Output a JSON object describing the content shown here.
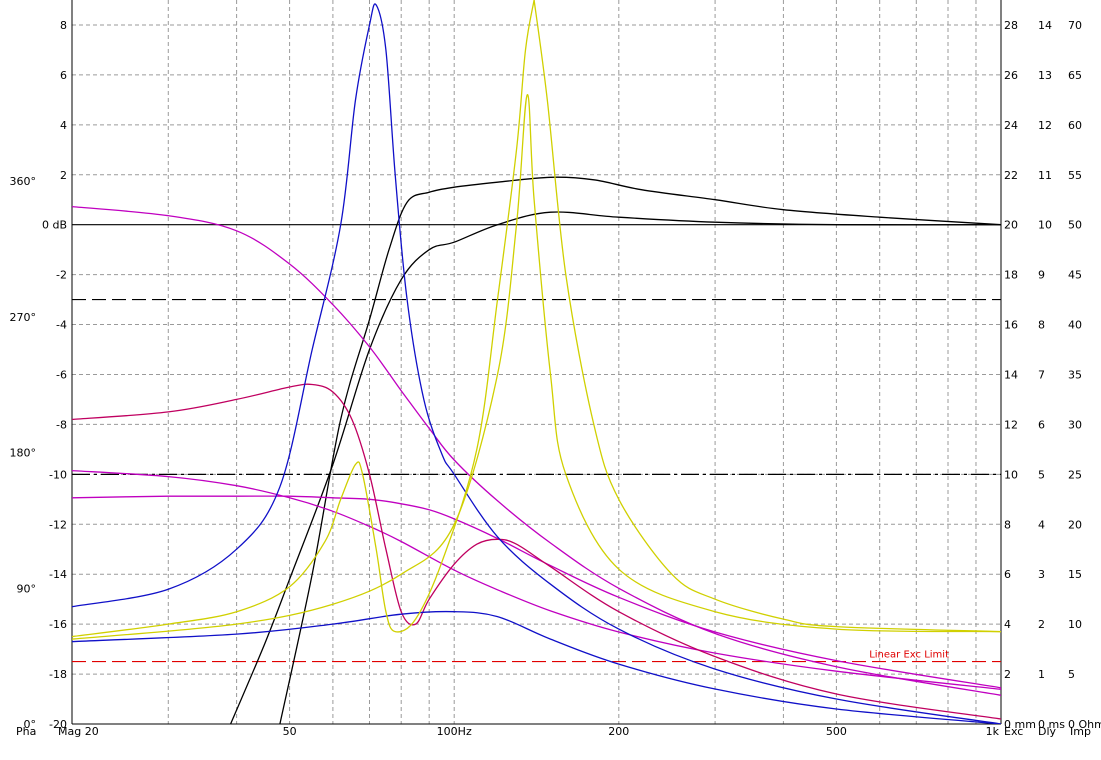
{
  "chart_data": {
    "type": "line",
    "x_scale": "log",
    "xlim": [
      20,
      1000
    ],
    "x_ticks": [
      {
        "value": 20,
        "label": "Mag 20"
      },
      {
        "value": 50,
        "label": "50"
      },
      {
        "value": 100,
        "label": "100Hz"
      },
      {
        "value": 200,
        "label": "200"
      },
      {
        "value": 500,
        "label": "500"
      },
      {
        "value": 1000,
        "label": "1k"
      }
    ],
    "x_gridlines": [
      20,
      30,
      40,
      50,
      60,
      70,
      80,
      90,
      100,
      200,
      300,
      400,
      500,
      600,
      700,
      800,
      900,
      1000
    ],
    "magnitude_axis": {
      "unit": "dB",
      "ylim": [
        -20,
        9
      ],
      "ticks": [
        {
          "value": 8,
          "label": "8"
        },
        {
          "value": 6,
          "label": "6"
        },
        {
          "value": 4,
          "label": "4"
        },
        {
          "value": 2,
          "label": "2"
        },
        {
          "value": 0,
          "label": "0 dB"
        },
        {
          "value": -2,
          "label": "-2"
        },
        {
          "value": -4,
          "label": "-4"
        },
        {
          "value": -6,
          "label": "-6"
        },
        {
          "value": -8,
          "label": "-8"
        },
        {
          "value": -10,
          "label": "-10"
        },
        {
          "value": -12,
          "label": "-12"
        },
        {
          "value": -14,
          "label": "-14"
        },
        {
          "value": -16,
          "label": "-16"
        },
        {
          "value": -18,
          "label": "-18"
        },
        {
          "value": -20,
          "label": "-20"
        }
      ]
    },
    "phase_axis": {
      "ticks": [
        {
          "value": 360,
          "label": "360°"
        },
        {
          "value": 270,
          "label": "270°"
        },
        {
          "value": 180,
          "label": "180°"
        },
        {
          "value": 90,
          "label": "90°"
        },
        {
          "value": 0,
          "label": "0°"
        }
      ],
      "ylim": [
        0,
        480
      ],
      "color": "#c000c0"
    },
    "excursion_axis": {
      "ticks": [
        "28",
        "26",
        "24",
        "22",
        "20",
        "18",
        "16",
        "14",
        "12",
        "10",
        "8",
        "6",
        "4",
        "2",
        "0 mm"
      ],
      "ylim": [
        0,
        29
      ]
    },
    "delay_axis": {
      "ticks": [
        "14",
        "13",
        "12",
        "11",
        "10",
        "9",
        "8",
        "7",
        "6",
        "5",
        "4",
        "3",
        "2",
        "1",
        "0 ms"
      ],
      "ylim": [
        0,
        14.5
      ]
    },
    "impedance_axis": {
      "ticks": [
        "70",
        "65",
        "60",
        "55",
        "50",
        "45",
        "40",
        "35",
        "30",
        "25",
        "20",
        "15",
        "10",
        "5",
        "0 Ohm"
      ],
      "ylim": [
        0,
        72.5
      ]
    },
    "footer_labels": {
      "pha": "Pha",
      "exc": "Exc",
      "dly": "Dly",
      "imp": "Imp"
    },
    "footer_colors": {
      "pha": "#c000c0",
      "exc": "#c00000",
      "dly": "#0000c0",
      "imp": "#d8d800"
    },
    "reference_lines": [
      {
        "name": "zero-db",
        "axis": "magnitude",
        "value": 0,
        "style": "solid",
        "color": "#000000"
      },
      {
        "name": "minus-3db",
        "axis": "magnitude",
        "value": -3,
        "style": "dashed",
        "color": "#000000"
      },
      {
        "name": "minus-10db",
        "axis": "magnitude",
        "value": -10,
        "style": "dashdot",
        "color": "#000000"
      },
      {
        "name": "linear-exc-limit",
        "axis": "magnitude",
        "value": -17.5,
        "style": "dashed",
        "color": "#e00000",
        "label": "Linear Exc Limit"
      }
    ],
    "series": [
      {
        "key": "mag_a",
        "axis": "magnitude",
        "color": "#000000",
        "points": [
          [
            39,
            -20
          ],
          [
            45,
            -16.8
          ],
          [
            50,
            -14.2
          ],
          [
            60,
            -9.6
          ],
          [
            70,
            -5
          ],
          [
            80,
            -2.2
          ],
          [
            90,
            -1
          ],
          [
            100,
            -0.7
          ],
          [
            120,
            0
          ],
          [
            150,
            0.5
          ],
          [
            200,
            0.3
          ],
          [
            300,
            0.1
          ],
          [
            500,
            0
          ],
          [
            1000,
            0
          ]
        ]
      },
      {
        "key": "mag_b",
        "axis": "magnitude",
        "color": "#000000",
        "points": [
          [
            48,
            -20
          ],
          [
            55,
            -14
          ],
          [
            62,
            -7.8
          ],
          [
            70,
            -3.8
          ],
          [
            76,
            -1
          ],
          [
            82,
            0.9
          ],
          [
            90,
            1.3
          ],
          [
            100,
            1.5
          ],
          [
            120,
            1.7
          ],
          [
            150,
            1.9
          ],
          [
            180,
            1.8
          ],
          [
            220,
            1.4
          ],
          [
            300,
            1
          ],
          [
            400,
            0.6
          ],
          [
            600,
            0.3
          ],
          [
            1000,
            0
          ]
        ]
      },
      {
        "key": "pha_a",
        "axis": "phase",
        "color": "#c000c0",
        "points": [
          [
            20,
            343
          ],
          [
            30,
            337
          ],
          [
            40,
            327
          ],
          [
            50,
            305
          ],
          [
            60,
            278
          ],
          [
            70,
            250
          ],
          [
            80,
            221
          ],
          [
            90,
            196
          ],
          [
            100,
            175
          ],
          [
            120,
            148
          ],
          [
            150,
            120
          ],
          [
            200,
            90
          ],
          [
            300,
            60
          ],
          [
            500,
            38
          ],
          [
            1000,
            19
          ]
        ]
      },
      {
        "key": "pha_b",
        "axis": "phase",
        "color": "#c000c0",
        "points": [
          [
            20,
            168
          ],
          [
            30,
            164
          ],
          [
            40,
            158
          ],
          [
            50,
            150
          ],
          [
            60,
            141
          ],
          [
            70,
            131
          ],
          [
            80,
            121
          ],
          [
            100,
            102
          ],
          [
            120,
            89
          ],
          [
            150,
            75
          ],
          [
            200,
            61
          ],
          [
            300,
            47
          ],
          [
            500,
            35
          ],
          [
            1000,
            23
          ]
        ]
      },
      {
        "key": "pha_c",
        "axis": "phase",
        "color": "#c000c0",
        "points": [
          [
            20,
            150
          ],
          [
            30,
            151
          ],
          [
            40,
            151
          ],
          [
            50,
            151
          ],
          [
            60,
            150
          ],
          [
            70,
            149
          ],
          [
            80,
            146
          ],
          [
            90,
            142
          ],
          [
            100,
            136
          ],
          [
            120,
            123
          ],
          [
            150,
            105
          ],
          [
            200,
            84
          ],
          [
            300,
            61
          ],
          [
            500,
            42
          ],
          [
            1000,
            24
          ]
        ]
      },
      {
        "key": "exc_a",
        "axis": "magnitude",
        "color": "#c00060",
        "points": [
          [
            20,
            -7.8
          ],
          [
            30,
            -7.5
          ],
          [
            40,
            -7
          ],
          [
            50,
            -6.5
          ],
          [
            55,
            -6.4
          ],
          [
            60,
            -6.7
          ],
          [
            65,
            -7.8
          ],
          [
            70,
            -10
          ],
          [
            75,
            -13
          ],
          [
            80,
            -15.5
          ],
          [
            85,
            -16
          ],
          [
            90,
            -15
          ],
          [
            100,
            -13.6
          ],
          [
            110,
            -12.8
          ],
          [
            120,
            -12.6
          ],
          [
            130,
            -12.8
          ],
          [
            150,
            -13.7
          ],
          [
            200,
            -15.5
          ],
          [
            300,
            -17.3
          ],
          [
            500,
            -18.8
          ],
          [
            1000,
            -19.8
          ]
        ]
      },
      {
        "key": "dly_a",
        "axis": "magnitude",
        "color": "#1010c8",
        "points": [
          [
            20,
            -15.3
          ],
          [
            30,
            -14.6
          ],
          [
            40,
            -13
          ],
          [
            48,
            -10.5
          ],
          [
            55,
            -5
          ],
          [
            62,
            0
          ],
          [
            66,
            5
          ],
          [
            70,
            8
          ],
          [
            72,
            8.8
          ],
          [
            75,
            7
          ],
          [
            78,
            2
          ],
          [
            82,
            -3
          ],
          [
            88,
            -7
          ],
          [
            95,
            -9.2
          ],
          [
            100,
            -10
          ],
          [
            120,
            -12.5
          ],
          [
            150,
            -14.4
          ],
          [
            200,
            -16.2
          ],
          [
            300,
            -17.8
          ],
          [
            500,
            -19
          ],
          [
            1000,
            -20
          ]
        ]
      },
      {
        "key": "dly_b",
        "axis": "magnitude",
        "color": "#1010c8",
        "points": [
          [
            20,
            -16.7
          ],
          [
            40,
            -16.4
          ],
          [
            60,
            -16
          ],
          [
            80,
            -15.6
          ],
          [
            100,
            -15.5
          ],
          [
            120,
            -15.7
          ],
          [
            150,
            -16.6
          ],
          [
            200,
            -17.6
          ],
          [
            300,
            -18.6
          ],
          [
            500,
            -19.4
          ],
          [
            1000,
            -20
          ]
        ]
      },
      {
        "key": "imp_a",
        "axis": "magnitude",
        "color": "#d0d000",
        "points": [
          [
            20,
            -16.5
          ],
          [
            30,
            -16
          ],
          [
            40,
            -15.5
          ],
          [
            50,
            -14.5
          ],
          [
            58,
            -12.7
          ],
          [
            62,
            -11
          ],
          [
            66,
            -9.6
          ],
          [
            68,
            -10
          ],
          [
            72,
            -13
          ],
          [
            75,
            -15.5
          ],
          [
            78,
            -16.3
          ],
          [
            85,
            -15.8
          ],
          [
            95,
            -13.5
          ],
          [
            110,
            -9
          ],
          [
            120,
            -3
          ],
          [
            130,
            3
          ],
          [
            135,
            7
          ],
          [
            140,
            9
          ]
        ]
      },
      {
        "key": "imp_b",
        "axis": "magnitude",
        "color": "#d0d000",
        "points": [
          [
            20,
            -16.6
          ],
          [
            40,
            -16
          ],
          [
            60,
            -15.2
          ],
          [
            80,
            -14
          ],
          [
            100,
            -12
          ],
          [
            120,
            -6
          ],
          [
            130,
            0
          ],
          [
            136,
            5.2
          ],
          [
            140,
            1
          ],
          [
            150,
            -6
          ],
          [
            160,
            -10
          ],
          [
            200,
            -13.8
          ],
          [
            300,
            -15.5
          ],
          [
            500,
            -16.2
          ],
          [
            1000,
            -16.3
          ]
        ]
      },
      {
        "key": "imp_c",
        "axis": "magnitude",
        "color": "#d0d000",
        "points": [
          [
            140,
            9
          ],
          [
            148,
            5
          ],
          [
            160,
            -2
          ],
          [
            180,
            -8
          ],
          [
            200,
            -11
          ],
          [
            250,
            -14
          ],
          [
            300,
            -15
          ],
          [
            400,
            -15.8
          ],
          [
            500,
            -16.1
          ],
          [
            1000,
            -16.3
          ]
        ]
      }
    ]
  }
}
